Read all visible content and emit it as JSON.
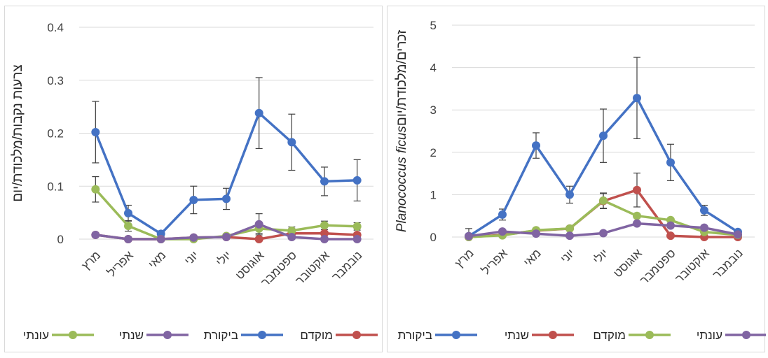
{
  "colors": {
    "control": "#4472C4",
    "red": "#C0504D",
    "green": "#9BBB59",
    "purple": "#8064A2",
    "error_bar": "#404040",
    "grid": "#d9d9d9"
  },
  "chart_data": [
    {
      "type": "line",
      "ylabel": "צרעות נקבות/מלכודת/יום",
      "ylim": [
        0,
        0.4
      ],
      "yticks": [
        "0",
        "0.1",
        "0.2",
        "0.3",
        "0.4"
      ],
      "ytick_values": [
        0,
        0.1,
        0.2,
        0.3,
        0.4
      ],
      "categories": [
        "מרץ",
        "אפריל",
        "מאי",
        "יוני",
        "יולי",
        "אוגוסט",
        "ספטמבר",
        "אוקטובר",
        "נובמבר"
      ],
      "grid": true,
      "legend_position": "bottom",
      "series": [
        {
          "name": "ביקורת",
          "color": "#4472C4",
          "values": [
            0.202,
            0.049,
            0.01,
            0.074,
            0.076,
            0.238,
            0.183,
            0.109,
            0.111
          ],
          "errors": [
            0.058,
            0.015,
            0.005,
            0.026,
            0.02,
            0.067,
            0.053,
            0.027,
            0.039
          ]
        },
        {
          "name": "מוקדם",
          "color": "#C0504D",
          "values": [
            0.008,
            0.0,
            0.0,
            0.003,
            0.004,
            0.0,
            0.011,
            0.011,
            0.008
          ],
          "errors": [
            0,
            0,
            0,
            0,
            0,
            0,
            0,
            0,
            0
          ]
        },
        {
          "name": "עונתי",
          "color": "#9BBB59",
          "values": [
            0.094,
            0.025,
            0.0,
            0.0,
            0.006,
            0.02,
            0.016,
            0.026,
            0.024
          ],
          "errors": [
            0.024,
            0.01,
            0,
            0,
            0,
            0.009,
            0.007,
            0.008,
            0.007
          ]
        },
        {
          "name": "שנתי",
          "color": "#8064A2",
          "values": [
            0.008,
            0.0,
            0.0,
            0.003,
            0.004,
            0.028,
            0.004,
            0.0,
            0.0
          ],
          "errors": [
            0,
            0,
            0,
            0,
            0,
            0.02,
            0.004,
            0,
            0
          ]
        }
      ]
    },
    {
      "type": "line",
      "ylabel": "זכרים/מלכודת/יוםPlanococcus ficus",
      "ylabel_plain": "זכרים/מלכודת/יום",
      "ylabel_italic": "Planococcus ficus",
      "ylim": [
        0,
        5
      ],
      "yticks": [
        "0",
        "1",
        "2",
        "3",
        "4",
        "5"
      ],
      "ytick_values": [
        0,
        1,
        2,
        3,
        4,
        5
      ],
      "categories": [
        "מרץ",
        "אפריל",
        "מאי",
        "יוני",
        "יולי",
        "אוגוסט",
        "ספטמבר",
        "אוקטובר",
        "נובמבר"
      ],
      "grid": true,
      "legend_position": "bottom",
      "series": [
        {
          "name": "ביקורת",
          "color": "#4472C4",
          "values": [
            0.02,
            0.53,
            2.16,
            1.0,
            2.39,
            3.28,
            1.76,
            0.63,
            0.12
          ],
          "errors": [
            0.18,
            0.13,
            0.3,
            0.2,
            0.63,
            0.96,
            0.43,
            0.12,
            0.05
          ]
        },
        {
          "name": "שנתי",
          "color": "#C0504D",
          "values": [
            0.0,
            0.05,
            0.15,
            0.2,
            0.85,
            1.11,
            0.03,
            0.0,
            0.0
          ],
          "errors": [
            0,
            0,
            0,
            0,
            0.18,
            0.4,
            0,
            0,
            0
          ]
        },
        {
          "name": "מוקדם",
          "color": "#9BBB59",
          "values": [
            0.0,
            0.04,
            0.16,
            0.2,
            0.86,
            0.5,
            0.4,
            0.12,
            0.05
          ],
          "errors": [
            0,
            0,
            0,
            0,
            0.18,
            0,
            0,
            0,
            0
          ]
        },
        {
          "name": "עונתי",
          "color": "#8064A2",
          "values": [
            0.02,
            0.13,
            0.08,
            0.03,
            0.09,
            0.32,
            0.27,
            0.22,
            0.06
          ],
          "errors": [
            0,
            0,
            0,
            0,
            0,
            0,
            0,
            0,
            0
          ]
        }
      ]
    }
  ]
}
